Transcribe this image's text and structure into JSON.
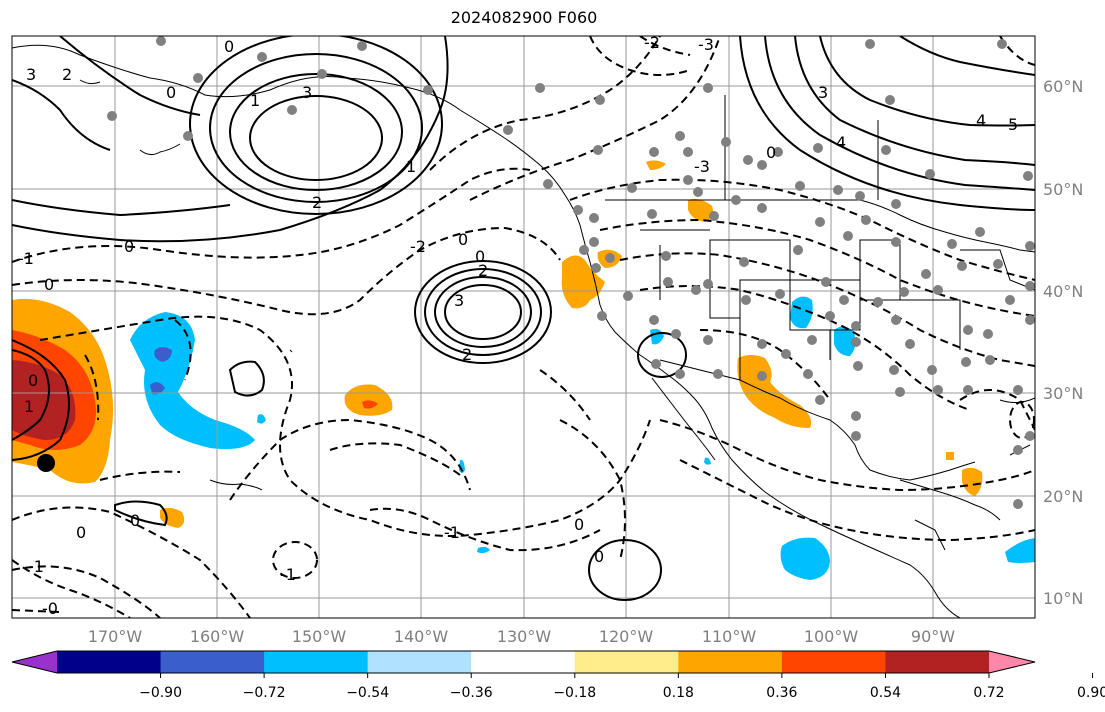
{
  "title": "2024082900 F060",
  "map": {
    "lon_labels": [
      "170°W",
      "160°W",
      "150°W",
      "140°W",
      "130°W",
      "120°W",
      "110°W",
      "100°W",
      "90°W"
    ],
    "lat_labels": [
      "60°N",
      "50°N",
      "40°N",
      "30°N",
      "20°N",
      "10°N"
    ],
    "contour_labels": {
      "low_center": "3",
      "low_inner": "2",
      "low_outer": "0",
      "west": "0",
      "west2": "-1",
      "southwest": "-0",
      "south": "0",
      "south2": "-1",
      "central": "-1",
      "central2": "0",
      "north": "-2",
      "north2": "-3",
      "ne_high": "4",
      "ne_high2": "5",
      "nw": "3",
      "nw2": "2",
      "nw3": "0",
      "nw4": "1"
    }
  },
  "colorbar": {
    "tick_labels": [
      "−0.90",
      "−0.72",
      "−0.54",
      "−0.36",
      "−0.18",
      "0.18",
      "0.36",
      "0.54",
      "0.72",
      "0.90"
    ],
    "colors": [
      "#9932cc",
      "#00008b",
      "#3a5fcd",
      "#00bfff",
      "#b0e2ff",
      "#ffffff",
      "#ffec8b",
      "#ffa500",
      "#ff4500",
      "#b22222",
      "#ff88aa"
    ]
  }
}
